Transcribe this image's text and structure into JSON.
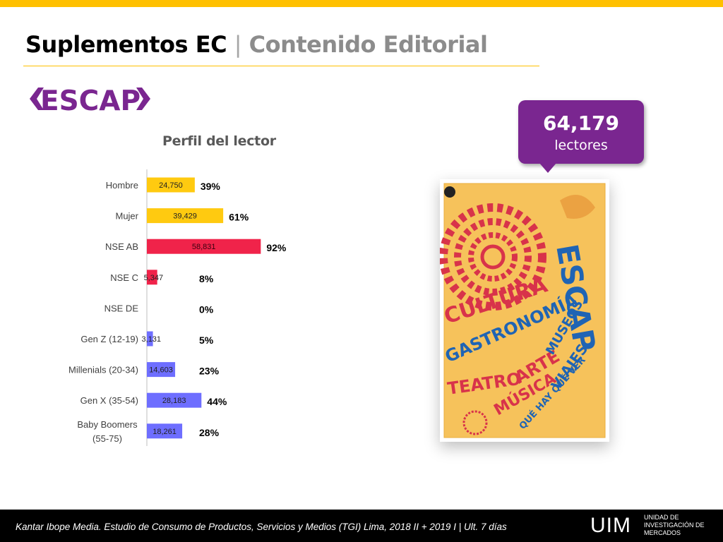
{
  "header": {
    "title_main": "Suplementos EC",
    "title_sep": "|",
    "title_sub": "Contenido Editorial"
  },
  "logo": {
    "text": "ESCAP",
    "color": "#7A2690"
  },
  "callout": {
    "value": "64,179",
    "label": "lectores",
    "color": "#7A2690"
  },
  "cover": {
    "title": "ESCAP",
    "words": [
      "CULTURA",
      "GASTRONOMÍA",
      "TEATRO",
      "ARTE",
      "MUSEOS",
      "MÚSICA",
      "VIAJES",
      "QUÉ HAY QUÉ VER"
    ]
  },
  "chart_data": {
    "type": "bar",
    "orientation": "horizontal",
    "title": "Perfil del lector",
    "categories": [
      "Hombre",
      "Mujer",
      "NSE AB",
      "NSE C",
      "NSE DE",
      "Gen Z (12-19)",
      "Millenials (20-34)",
      "Gen X (35-54)",
      "Baby Boomers (55-75)"
    ],
    "values": [
      24750,
      39429,
      58831,
      5347,
      0,
      3131,
      14603,
      28183,
      18261
    ],
    "value_labels": [
      "24,750",
      "39,429",
      "58,831",
      "5,347",
      "",
      "3,131",
      "14,603",
      "28,183",
      "18,261"
    ],
    "percent_labels": [
      "39%",
      "61%",
      "92%",
      "8%",
      "0%",
      "5%",
      "23%",
      "44%",
      "28%"
    ],
    "colors": [
      "#FFCA10",
      "#FFCA10",
      "#F0234A",
      "#F0234A",
      "#F0234A",
      "#6E6EFF",
      "#6E6EFF",
      "#6E6EFF",
      "#6E6EFF"
    ],
    "xlim": [
      0,
      64179
    ],
    "xlabel": "",
    "ylabel": "",
    "grid": false
  },
  "footer": {
    "source": "Kantar Ibope Media. Estudio de Consumo de Productos, Servicios y Medios (TGI) Lima, 2018 II + 2019 I  | Ult. 7 días",
    "brand": "UIM",
    "unit_lines": [
      "UNIDAD DE",
      "INVESTIGACIÓN DE",
      "MERCADOS"
    ]
  }
}
